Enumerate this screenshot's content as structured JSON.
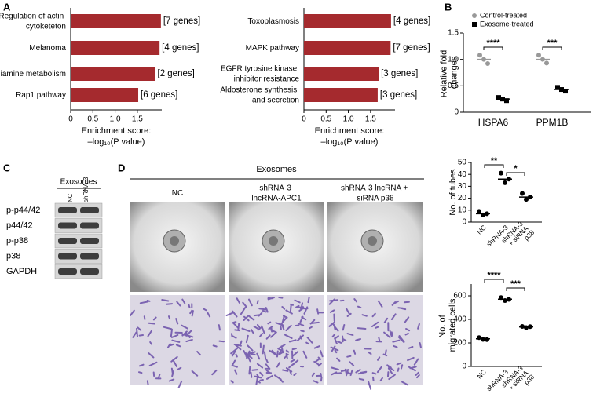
{
  "panel_labels": [
    "A",
    "B",
    "C",
    "D"
  ],
  "chart_data": [
    {
      "type": "hbar",
      "categories": [
        "Regulation of actin cytoketeton",
        "Melanoma",
        "Thiamine metabolism",
        "Rap1 pathway"
      ],
      "values": [
        2.03,
        2.0,
        1.9,
        1.52
      ],
      "bar_labels": [
        "[7 genes]",
        "[4 genes]",
        "[2 genes]",
        "[6 genes]"
      ],
      "color": "#a52a2e",
      "xlim": [
        0,
        2.05
      ],
      "xticks": [
        0,
        0.5,
        {
          "value": 1,
          "label": "1.0"
        },
        1.5
      ],
      "xlabel": [
        "Enrichment score:",
        "–log₁₀(P value)"
      ]
    },
    {
      "type": "hbar",
      "categories": [
        "Toxoplasmosis",
        "MAPK pathway",
        "EGFR tyrosine kinase inhibitor resistance",
        "Aldosterone synthesis and secretion"
      ],
      "values": [
        1.96,
        1.95,
        1.68,
        1.66
      ],
      "bar_labels": [
        "[4 genes]",
        "[7 genes]",
        "[3 genes]",
        "[3 genes]"
      ],
      "color": "#a52a2e",
      "xlim": [
        0,
        2.05
      ],
      "xticks": [
        0,
        0.5,
        {
          "value": 1,
          "label": "1.0"
        },
        1.5
      ],
      "xlabel": [
        "Enrichment score:",
        "–log₁₀(P value)"
      ]
    },
    {
      "type": "dot",
      "categories": [
        "HSPA6",
        "PPM1B"
      ],
      "ylabel": "Relative fold changes",
      "ylim": [
        0,
        1.5
      ],
      "yticks": [
        0,
        0.5,
        {
          "value": 1,
          "label": "1.0"
        },
        1.5
      ],
      "series": [
        {
          "name": "Control-treated",
          "color": "#999999",
          "values": [
            1.0,
            1.0
          ],
          "points": [
            [
              1.08,
              1.0,
              0.92
            ],
            [
              1.08,
              1.0,
              0.93
            ]
          ]
        },
        {
          "name": "Exosome-treated",
          "color": "#000000",
          "values": [
            0.25,
            0.43
          ],
          "points": [
            [
              0.28,
              0.25,
              0.22
            ],
            [
              0.47,
              0.43,
              0.4
            ]
          ]
        }
      ],
      "significance": [
        "****",
        "***"
      ]
    },
    {
      "type": "dot",
      "categories": [
        "NC",
        "shRNA-3",
        "shRNA-3 + siRNA p38"
      ],
      "ylabel": "No. of tubes",
      "ylim": [
        0,
        50
      ],
      "yticks": [
        0,
        10,
        20,
        30,
        40,
        50
      ],
      "series": [
        {
          "color": "#000000",
          "values": [
            7,
            36,
            21
          ],
          "points": [
            [
              9,
              6,
              7
            ],
            [
              41,
              33,
              36
            ],
            [
              24,
              19,
              21
            ]
          ]
        }
      ],
      "significance": [
        "**",
        "*"
      ]
    },
    {
      "type": "dot",
      "categories": [
        "NC",
        "shRNA-3",
        "shRNA-3 + siRNA p38"
      ],
      "ylabel": "No. of migrated cells",
      "ylim": [
        0,
        700
      ],
      "yticks": [
        0,
        200,
        400,
        600
      ],
      "series": [
        {
          "color": "#000000",
          "values": [
            235,
            572,
            336
          ],
          "points": [
            [
              245,
              230,
              228
            ],
            [
              585,
              560,
              570
            ],
            [
              340,
              330,
              338
            ]
          ]
        }
      ],
      "significance": [
        "****",
        "***"
      ]
    }
  ],
  "blot": {
    "title": "Exosomes",
    "lanes": [
      "NC",
      "shRNA-3"
    ],
    "rows": [
      "p-p44/42",
      "p44/42",
      "p-p38",
      "p38",
      "GAPDH"
    ]
  },
  "micrographs": {
    "title": "Exosomes",
    "columns": [
      "NC",
      "shRNA-3 lncRNA-APC1",
      "shRNA-3 lncRNA + siRNA p38"
    ]
  }
}
